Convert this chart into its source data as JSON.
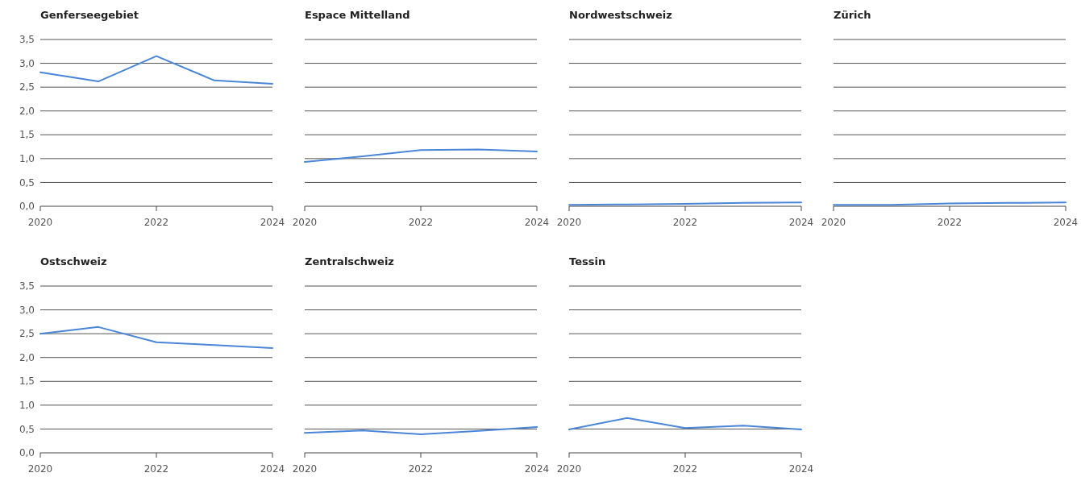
{
  "chart_data": [
    {
      "type": "line",
      "title": "Genferseegebiet",
      "x": [
        2020,
        2021,
        2022,
        2023,
        2024
      ],
      "series": [
        {
          "color": "#4a86d8",
          "values": [
            2.81,
            2.62,
            3.15,
            2.64,
            2.57
          ]
        }
      ],
      "xlim": [
        2020,
        2024
      ],
      "xticks": [
        2020,
        2022,
        2024
      ],
      "ylim": [
        0,
        3.5
      ],
      "yticks": [
        {
          "value": 0,
          "label": "0,0"
        },
        {
          "value": 0.5,
          "label": "0,5"
        },
        {
          "value": 1,
          "label": "1,0"
        },
        {
          "value": 1.5,
          "label": "1,5"
        },
        {
          "value": 2,
          "label": "2,0"
        },
        {
          "value": 2.5,
          "label": "2,5"
        },
        {
          "value": 3,
          "label": "3,0"
        },
        {
          "value": 3.5,
          "label": "3,5"
        }
      ],
      "grid": "y"
    },
    {
      "type": "line",
      "title": "Espace Mittelland",
      "x": [
        2020,
        2021,
        2022,
        2023,
        2024
      ],
      "series": [
        {
          "color": "#4a86d8",
          "values": [
            0.93,
            1.05,
            1.18,
            1.19,
            1.15
          ]
        }
      ],
      "xlim": [
        2020,
        2024
      ],
      "xticks": [
        2020,
        2022,
        2024
      ],
      "ylim": [
        0,
        3.5
      ],
      "yticks": [
        {
          "value": 0,
          "label": null
        },
        {
          "value": 0.5,
          "label": null
        },
        {
          "value": 1,
          "label": null
        },
        {
          "value": 1.5,
          "label": null
        },
        {
          "value": 2,
          "label": null
        },
        {
          "value": 2.5,
          "label": null
        },
        {
          "value": 3,
          "label": null
        },
        {
          "value": 3.5,
          "label": null
        }
      ],
      "grid": "y",
      "tick_labels": "x"
    },
    {
      "type": "line",
      "title": "Nordwestschweiz",
      "x": [
        2020,
        2021,
        2022,
        2023,
        2024
      ],
      "series": [
        {
          "color": "#4a86d8",
          "values": [
            0.03,
            0.04,
            0.05,
            0.07,
            0.08
          ]
        }
      ],
      "xlim": [
        2020,
        2024
      ],
      "xticks": [
        2020,
        2022,
        2024
      ],
      "ylim": [
        0,
        3.5
      ],
      "yticks": [
        {
          "value": 0,
          "label": null
        },
        {
          "value": 0.5,
          "label": null
        },
        {
          "value": 1,
          "label": null
        },
        {
          "value": 1.5,
          "label": null
        },
        {
          "value": 2,
          "label": null
        },
        {
          "value": 2.5,
          "label": null
        },
        {
          "value": 3,
          "label": null
        },
        {
          "value": 3.5,
          "label": null
        }
      ],
      "grid": "y",
      "tick_labels": "x"
    },
    {
      "type": "line",
      "title": "Zürich",
      "x": [
        2020,
        2021,
        2022,
        2023,
        2024
      ],
      "series": [
        {
          "color": "#4a86d8",
          "values": [
            0.03,
            0.03,
            0.06,
            0.07,
            0.08
          ]
        }
      ],
      "xlim": [
        2020,
        2024
      ],
      "xticks": [
        2020,
        2022,
        2024
      ],
      "ylim": [
        0,
        3.5
      ],
      "yticks": [
        {
          "value": 0,
          "label": null
        },
        {
          "value": 0.5,
          "label": null
        },
        {
          "value": 1,
          "label": null
        },
        {
          "value": 1.5,
          "label": null
        },
        {
          "value": 2,
          "label": null
        },
        {
          "value": 2.5,
          "label": null
        },
        {
          "value": 3,
          "label": null
        },
        {
          "value": 3.5,
          "label": null
        }
      ],
      "grid": "y",
      "tick_labels": "x"
    },
    {
      "type": "line",
      "title": "Ostschweiz",
      "x": [
        2020,
        2021,
        2022,
        2023,
        2024
      ],
      "series": [
        {
          "color": "#4a86d8",
          "values": [
            2.5,
            2.64,
            2.32,
            2.26,
            2.2
          ]
        }
      ],
      "xlim": [
        2020,
        2024
      ],
      "xticks": [
        2020,
        2022,
        2024
      ],
      "ylim": [
        0,
        3.5
      ],
      "yticks": [
        {
          "value": 0,
          "label": "0,0"
        },
        {
          "value": 0.5,
          "label": "0,5"
        },
        {
          "value": 1,
          "label": "1,0"
        },
        {
          "value": 1.5,
          "label": "1,5"
        },
        {
          "value": 2,
          "label": "2,0"
        },
        {
          "value": 2.5,
          "label": "2,5"
        },
        {
          "value": 3,
          "label": "3,0"
        },
        {
          "value": 3.5,
          "label": "3,5"
        }
      ],
      "grid": "y"
    },
    {
      "type": "line",
      "title": "Zentralschweiz",
      "x": [
        2020,
        2021,
        2022,
        2023,
        2024
      ],
      "series": [
        {
          "color": "#4a86d8",
          "values": [
            0.42,
            0.47,
            0.39,
            0.46,
            0.54
          ]
        }
      ],
      "xlim": [
        2020,
        2024
      ],
      "xticks": [
        2020,
        2022,
        2024
      ],
      "ylim": [
        0,
        3.5
      ],
      "yticks": [
        {
          "value": 0,
          "label": null
        },
        {
          "value": 0.5,
          "label": null
        },
        {
          "value": 1,
          "label": null
        },
        {
          "value": 1.5,
          "label": null
        },
        {
          "value": 2,
          "label": null
        },
        {
          "value": 2.5,
          "label": null
        },
        {
          "value": 3,
          "label": null
        },
        {
          "value": 3.5,
          "label": null
        }
      ],
      "grid": "y",
      "tick_labels": "x"
    },
    {
      "type": "line",
      "title": "Tessin",
      "x": [
        2020,
        2021,
        2022,
        2023,
        2024
      ],
      "series": [
        {
          "color": "#4a86d8",
          "values": [
            0.49,
            0.73,
            0.52,
            0.57,
            0.49
          ]
        }
      ],
      "xlim": [
        2020,
        2024
      ],
      "xticks": [
        2020,
        2022,
        2024
      ],
      "ylim": [
        0,
        3.5
      ],
      "yticks": [
        {
          "value": 0,
          "label": null
        },
        {
          "value": 0.5,
          "label": null
        },
        {
          "value": 1,
          "label": null
        },
        {
          "value": 1.5,
          "label": null
        },
        {
          "value": 2,
          "label": null
        },
        {
          "value": 2.5,
          "label": null
        },
        {
          "value": 3,
          "label": null
        },
        {
          "value": 3.5,
          "label": null
        }
      ],
      "grid": "y",
      "tick_labels": "x"
    }
  ]
}
